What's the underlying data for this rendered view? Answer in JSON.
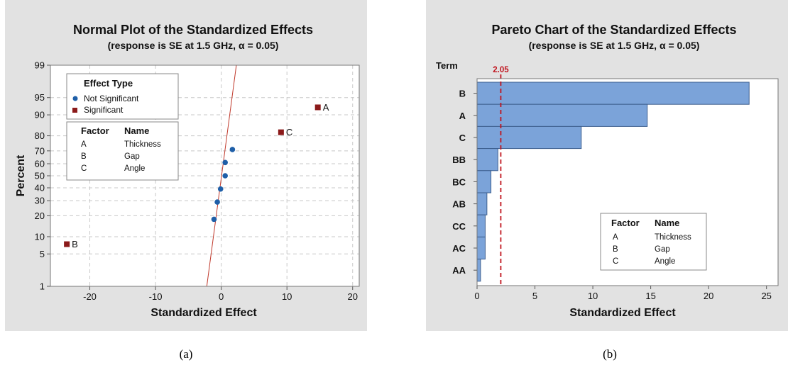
{
  "colors": {
    "panel_bg": "#e2e2e2",
    "plot_bg": "#ffffff",
    "not_significant": "#1f5fa8",
    "significant": "#8b1a1a",
    "fit_line": "#c0392b",
    "bar_fill": "#7ba3d9",
    "bar_stroke": "#3e5f8f",
    "ref_line": "#c0141e"
  },
  "captions": {
    "left": "(a)",
    "right": "(b)"
  },
  "chart_data": [
    {
      "type": "scatter",
      "title": "Normal Plot of the Standardized Effects",
      "subtitle": "(response is SE at 1.5 GHz, α = 0.05)",
      "xlabel": "Standardized Effect",
      "ylabel": "Percent",
      "xlim": [
        -26,
        21
      ],
      "x_ticks": [
        -20,
        -10,
        0,
        10,
        20
      ],
      "y_scale": "normal-probability",
      "ylim": [
        1,
        99
      ],
      "y_ticks": [
        1,
        5,
        10,
        20,
        30,
        40,
        50,
        60,
        70,
        80,
        90,
        95,
        99
      ],
      "grid": true,
      "legend": {
        "title": "Effect Type",
        "placement": "top-left",
        "entries": [
          {
            "label": "Not Significant",
            "marker": "circle",
            "color": "#1f5fa8"
          },
          {
            "label": "Significant",
            "marker": "square",
            "color": "#8b1a1a"
          }
        ]
      },
      "factor_table": {
        "headers": [
          "Factor",
          "Name"
        ],
        "rows": [
          [
            "A",
            "Thickness"
          ],
          [
            "B",
            "Gap"
          ],
          [
            "C",
            "Angle"
          ]
        ]
      },
      "fit_line": {
        "points": [
          [
            -2.2,
            1
          ],
          [
            2.3,
            99
          ]
        ]
      },
      "series": [
        {
          "name": "Not Significant",
          "points": [
            {
              "x": -1.1,
              "y": 18
            },
            {
              "x": -0.6,
              "y": 29
            },
            {
              "x": -0.1,
              "y": 39
            },
            {
              "x": 0.6,
              "y": 50
            },
            {
              "x": 0.6,
              "y": 61
            },
            {
              "x": 1.7,
              "y": 71
            }
          ]
        },
        {
          "name": "Significant",
          "points": [
            {
              "x": -23.5,
              "y": 7.5,
              "label": "B"
            },
            {
              "x": 9.1,
              "y": 82,
              "label": "C"
            },
            {
              "x": 14.7,
              "y": 92.5,
              "label": "A"
            }
          ]
        }
      ]
    },
    {
      "type": "bar",
      "orientation": "horizontal",
      "title": "Pareto Chart of the Standardized Effects",
      "subtitle": "(response is SE at 1.5 GHz, α = 0.05)",
      "xlabel": "Standardized Effect",
      "ylabel": "Term",
      "categories": [
        "B",
        "A",
        "C",
        "BB",
        "BC",
        "AB",
        "CC",
        "AC",
        "AA"
      ],
      "values": [
        23.5,
        14.7,
        9.0,
        1.8,
        1.2,
        0.85,
        0.7,
        0.7,
        0.3
      ],
      "xlim": [
        0,
        26
      ],
      "x_ticks": [
        0,
        5,
        10,
        15,
        20,
        25
      ],
      "reference_line": {
        "value": 2.05,
        "label": "2.05"
      },
      "factor_table": {
        "headers": [
          "Factor",
          "Name"
        ],
        "rows": [
          [
            "A",
            "Thickness"
          ],
          [
            "B",
            "Gap"
          ],
          [
            "C",
            "Angle"
          ]
        ]
      }
    }
  ]
}
